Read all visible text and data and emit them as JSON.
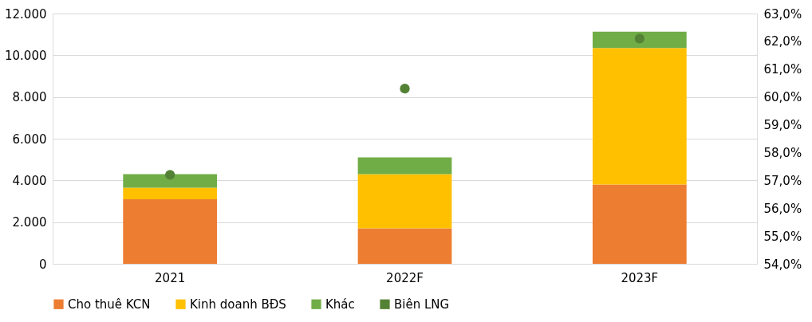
{
  "chart_data": {
    "type": "bar",
    "stacked": true,
    "categories": [
      "2021",
      "2022F",
      "2023F"
    ],
    "series": [
      {
        "name": "Cho thuê KCN",
        "color": "#ed7d31",
        "values": [
          3100,
          1700,
          3800
        ]
      },
      {
        "name": "Kinh doanh BĐS",
        "color": "#ffc000",
        "values": [
          550,
          2600,
          6550
        ]
      },
      {
        "name": "Khác",
        "color": "#70ad47",
        "values": [
          650,
          800,
          780
        ]
      },
      {
        "name": "Biên LNG",
        "color": "#548235",
        "type": "scatter",
        "axis": "y2",
        "marker": "circle",
        "values": [
          57.2,
          60.3,
          62.1
        ]
      }
    ],
    "ylim": [
      0,
      12000
    ],
    "yticks": [
      0,
      {
        "value": 2000,
        "label": "2.000"
      },
      {
        "value": 4000,
        "label": "4.000"
      },
      {
        "value": 6000,
        "label": "6.000"
      },
      {
        "value": 8000,
        "label": "8.000"
      },
      {
        "value": 10000,
        "label": "10.000"
      },
      {
        "value": 12000,
        "label": "12.000"
      }
    ],
    "y2lim": [
      54,
      63
    ],
    "y2ticks": [
      {
        "value": 54,
        "label": "54,0%"
      },
      {
        "value": 55,
        "label": "55,0%"
      },
      {
        "value": 56,
        "label": "56,0%"
      },
      {
        "value": 57,
        "label": "57,0%"
      },
      {
        "value": 58,
        "label": "58,0%"
      },
      {
        "value": 59,
        "label": "59,0%"
      },
      {
        "value": 60,
        "label": "60,0%"
      },
      {
        "value": 61,
        "label": "61,0%"
      },
      {
        "value": 62,
        "label": "62,0%"
      },
      {
        "value": 63,
        "label": "63,0%"
      }
    ],
    "grid": "y",
    "legend": "bottom"
  }
}
